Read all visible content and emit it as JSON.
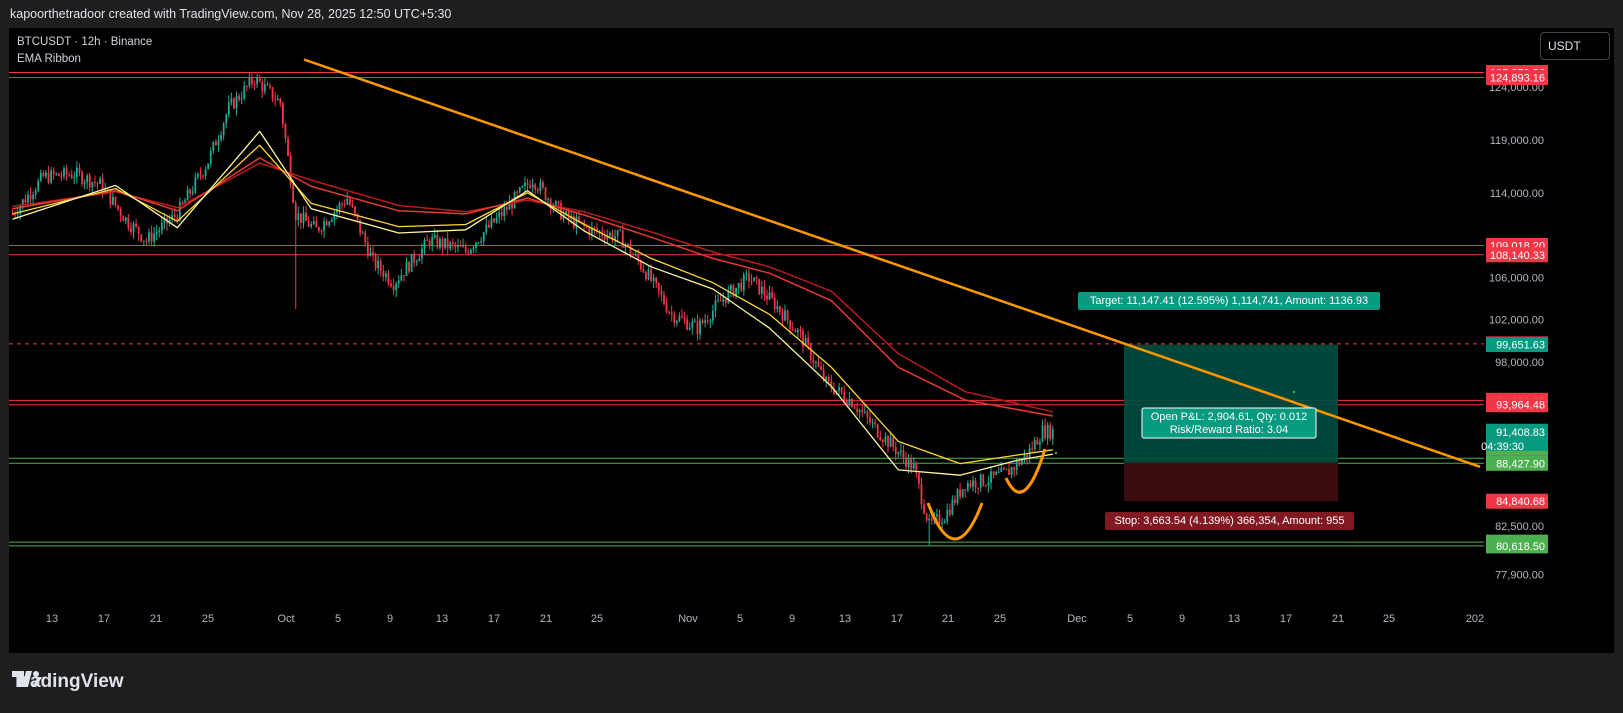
{
  "header": {
    "attribution": "kapoorthetradoor created with TradingView.com, Nov 28, 2025 12:50 UTC+5:30"
  },
  "legend": {
    "symbol": "BTCUSDT · 12h · Binance",
    "indicator": "EMA Ribbon"
  },
  "currency_button": "USDT",
  "footer": {
    "logo_text": "TradingView"
  },
  "colors": {
    "up": "#22ab94",
    "down": "#f23645",
    "trend": "#ff9800",
    "ema_fast": "#fff59d",
    "ema_mid": "#fdd835",
    "ema_slow": "#e53935",
    "ema_slow2": "#b71c1c",
    "red_label": "#f23645",
    "green_label": "#4caf50",
    "target_fill": "#004d40",
    "stop_fill": "#3d0d11"
  },
  "chart_data": {
    "type": "candlestick",
    "title": "BTCUSDT · 12h · Binance",
    "ylim": [
      75500,
      127500
    ],
    "x_ticks": [
      "13",
      "17",
      "21",
      "25",
      "Oct",
      "5",
      "9",
      "13",
      "17",
      "21",
      "25",
      "Nov",
      "5",
      "9",
      "13",
      "17",
      "21",
      "25",
      "Dec",
      "5",
      "9",
      "13",
      "17",
      "21",
      "25",
      "202"
    ],
    "y_ticks": [
      "124,000.00",
      "119,000.00",
      "114,000.00",
      "106,000.00",
      "102,000.00",
      "98,000.00",
      "82,500.00",
      "77,900.00"
    ],
    "y_tick_values": [
      124000,
      119000,
      114000,
      106000,
      102000,
      98000,
      82500,
      77900
    ],
    "anchors": [
      [
        0,
        112000
      ],
      [
        12,
        115500
      ],
      [
        24,
        115800
      ],
      [
        34,
        114800
      ],
      [
        44,
        111500
      ],
      [
        52,
        109500
      ],
      [
        64,
        112000
      ],
      [
        76,
        117000
      ],
      [
        84,
        122000
      ],
      [
        94,
        124800
      ],
      [
        104,
        122500
      ],
      [
        110,
        112000
      ],
      [
        118,
        110500
      ],
      [
        130,
        113500
      ],
      [
        140,
        107500
      ],
      [
        148,
        105500
      ],
      [
        162,
        109500
      ],
      [
        176,
        108500
      ],
      [
        190,
        112000
      ],
      [
        202,
        115300
      ],
      [
        214,
        111800
      ],
      [
        224,
        110500
      ],
      [
        236,
        109800
      ],
      [
        246,
        106500
      ],
      [
        256,
        102500
      ],
      [
        266,
        101200
      ],
      [
        276,
        104000
      ],
      [
        286,
        106000
      ],
      [
        296,
        103500
      ],
      [
        306,
        100500
      ],
      [
        316,
        96000
      ],
      [
        326,
        94300
      ],
      [
        334,
        92000
      ],
      [
        342,
        90000
      ],
      [
        350,
        88000
      ],
      [
        356,
        82500
      ],
      [
        362,
        83500
      ],
      [
        370,
        86500
      ],
      [
        378,
        86800
      ],
      [
        386,
        87500
      ],
      [
        394,
        89200
      ],
      [
        400,
        91500
      ],
      [
        404,
        91408
      ]
    ],
    "ema_fast": [
      [
        0,
        111500
      ],
      [
        40,
        114700
      ],
      [
        64,
        110700
      ],
      [
        96,
        119800
      ],
      [
        116,
        112500
      ],
      [
        150,
        110200
      ],
      [
        176,
        110500
      ],
      [
        200,
        114200
      ],
      [
        222,
        110400
      ],
      [
        248,
        107000
      ],
      [
        272,
        104900
      ],
      [
        294,
        101200
      ],
      [
        318,
        95700
      ],
      [
        344,
        87800
      ],
      [
        368,
        87300
      ],
      [
        390,
        88700
      ],
      [
        404,
        89300
      ]
    ],
    "ema_mid": [
      [
        0,
        112000
      ],
      [
        40,
        114400
      ],
      [
        64,
        111300
      ],
      [
        96,
        118500
      ],
      [
        116,
        113000
      ],
      [
        150,
        110800
      ],
      [
        176,
        111000
      ],
      [
        200,
        114000
      ],
      [
        222,
        111000
      ],
      [
        248,
        107800
      ],
      [
        272,
        105500
      ],
      [
        294,
        102500
      ],
      [
        318,
        97500
      ],
      [
        344,
        90500
      ],
      [
        368,
        88400
      ],
      [
        390,
        89200
      ],
      [
        404,
        89700
      ]
    ],
    "ema_slow": [
      [
        0,
        112500
      ],
      [
        40,
        114200
      ],
      [
        64,
        112300
      ],
      [
        96,
        117300
      ],
      [
        116,
        114600
      ],
      [
        150,
        112300
      ],
      [
        176,
        112000
      ],
      [
        200,
        113500
      ],
      [
        222,
        111900
      ],
      [
        248,
        109800
      ],
      [
        272,
        107800
      ],
      [
        294,
        106400
      ],
      [
        318,
        103800
      ],
      [
        344,
        97500
      ],
      [
        370,
        94400
      ],
      [
        404,
        92900
      ]
    ],
    "ema_slow2": [
      [
        0,
        112700
      ],
      [
        40,
        114100
      ],
      [
        64,
        112600
      ],
      [
        96,
        116800
      ],
      [
        116,
        115200
      ],
      [
        150,
        112800
      ],
      [
        176,
        112200
      ],
      [
        200,
        113300
      ],
      [
        222,
        112200
      ],
      [
        248,
        110300
      ],
      [
        272,
        108400
      ],
      [
        294,
        107000
      ],
      [
        318,
        104700
      ],
      [
        344,
        98800
      ],
      [
        370,
        95200
      ],
      [
        404,
        93300
      ]
    ],
    "trendline": {
      "from": [
        304,
        "Sep 29 (approx)",
        126600
      ],
      "to": [
        1480,
        "Dec 31 (approx)",
        88100
      ]
    },
    "horizontal_levels": [
      {
        "value": 125370.52,
        "label": "125,370.52",
        "color": "red"
      },
      {
        "value": 124893.16,
        "label": "124,893.16",
        "color": "red"
      },
      {
        "value": 109018.2,
        "label": "109,018.20",
        "color": "red"
      },
      {
        "value": 108140.33,
        "label": "108,140.33",
        "color": "red"
      },
      {
        "value": 94381.2,
        "label": "94,381.20",
        "color": "red"
      },
      {
        "value": 93964.48,
        "label": "93,964.48",
        "color": "red"
      },
      {
        "value": 88903.66,
        "label": "88,903.66",
        "color": "green"
      },
      {
        "value": 88427.9,
        "label": "88,427.90",
        "color": "green"
      },
      {
        "value": 80976.52,
        "label": "80,976.52",
        "color": "green"
      },
      {
        "value": 80618.5,
        "label": "80,618.50",
        "color": "green"
      }
    ],
    "price_labels": [
      {
        "value": 125370.52,
        "text": "125,370.52",
        "bg": "#f23645"
      },
      {
        "value": 124893.16,
        "text": "124,893.16",
        "bg": "#f23645"
      },
      {
        "value": 109018.2,
        "text": "109,018.20",
        "bg": "#f23645"
      },
      {
        "value": 108140.33,
        "text": "108,140.33",
        "bg": "#f23645"
      },
      {
        "value": 99712.69,
        "text": "99,712.69",
        "bg": "#f23645"
      },
      {
        "value": 99651.63,
        "text": "99,651.63",
        "bg": "#089981"
      },
      {
        "value": 94381.2,
        "text": "94,381.20",
        "bg": "#f23645"
      },
      {
        "value": 93964.48,
        "text": "93,964.48",
        "bg": "#f23645"
      },
      {
        "value": 91408.83,
        "text": "91,408.83",
        "bg": "#089981",
        "sub": "04:39:30"
      },
      {
        "value": 88903.66,
        "text": "88,903.66",
        "bg": "#4caf50"
      },
      {
        "value": 88504.22,
        "text": "88,504.22",
        "bg": "#787b86"
      },
      {
        "value": 88427.9,
        "text": "88,427.90",
        "bg": "#4caf50"
      },
      {
        "value": 84840.68,
        "text": "84,840.68",
        "bg": "#f23645"
      },
      {
        "value": 80976.52,
        "text": "80,976.52",
        "bg": "#4caf50"
      },
      {
        "value": 80618.5,
        "text": "80,618.50",
        "bg": "#4caf50"
      }
    ],
    "position": {
      "entry": 88504.22,
      "target": 99651.63,
      "stop": 84840.68,
      "dashed_level": 99712.69,
      "target_label": "Target: 11,147.41 (12.595%) 1,114,741, Amount: 1136.93",
      "stop_label": "Stop: 3,663.54 (4.139%) 366,354, Amount: 955",
      "pnl_label": "Open P&L: 2,904.61, Qty: 0.012",
      "rr_label": "Risk/Reward Ratio: 3.04"
    },
    "current_price": 91408.83,
    "countdown": "04:39:30"
  }
}
